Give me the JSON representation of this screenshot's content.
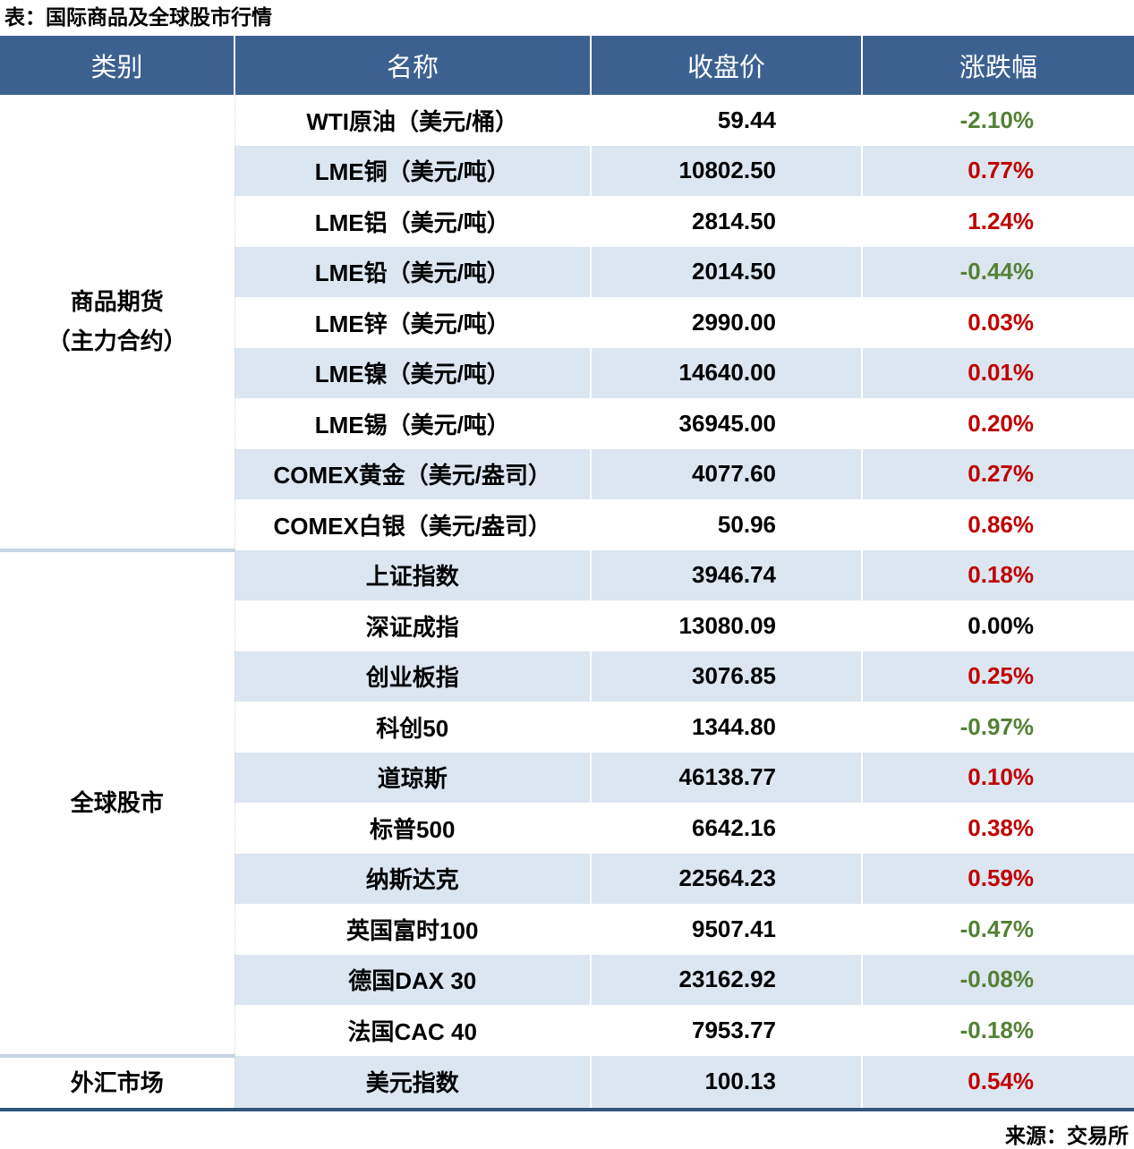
{
  "title": "表：国际商品及全球股市行情",
  "source": "来源：交易所",
  "columns": [
    "类别",
    "名称",
    "收盘价",
    "涨跌幅"
  ],
  "colors": {
    "header_bg": "#3c6191",
    "header_text": "#ffffff",
    "stripe_bg": "#dce6f1",
    "row_bg": "#ffffff",
    "up_text": "#c00000",
    "down_text": "#538135",
    "flat_text": "#000000",
    "bottom_rule": "#31567c",
    "section_divider": "#c6d4e4"
  },
  "sections": [
    {
      "category": "商品期货",
      "category_line2": "（主力合约）",
      "rows": [
        {
          "name": "WTI原油（美元/桶）",
          "close": "59.44",
          "change": "-2.10%",
          "dir": "down"
        },
        {
          "name": "LME铜（美元/吨）",
          "close": "10802.50",
          "change": "0.77%",
          "dir": "up"
        },
        {
          "name": "LME铝（美元/吨）",
          "close": "2814.50",
          "change": "1.24%",
          "dir": "up"
        },
        {
          "name": "LME铅（美元/吨）",
          "close": "2014.50",
          "change": "-0.44%",
          "dir": "down"
        },
        {
          "name": "LME锌（美元/吨）",
          "close": "2990.00",
          "change": "0.03%",
          "dir": "up"
        },
        {
          "name": "LME镍（美元/吨）",
          "close": "14640.00",
          "change": "0.01%",
          "dir": "up"
        },
        {
          "name": "LME锡（美元/吨）",
          "close": "36945.00",
          "change": "0.20%",
          "dir": "up"
        },
        {
          "name": "COMEX黄金（美元/盎司）",
          "close": "4077.60",
          "change": "0.27%",
          "dir": "up"
        },
        {
          "name": "COMEX白银（美元/盎司）",
          "close": "50.96",
          "change": "0.86%",
          "dir": "up"
        }
      ]
    },
    {
      "category": "全球股市",
      "category_line2": "",
      "rows": [
        {
          "name": "上证指数",
          "close": "3946.74",
          "change": "0.18%",
          "dir": "up"
        },
        {
          "name": "深证成指",
          "close": "13080.09",
          "change": "0.00%",
          "dir": "flat"
        },
        {
          "name": "创业板指",
          "close": "3076.85",
          "change": "0.25%",
          "dir": "up"
        },
        {
          "name": "科创50",
          "close": "1344.80",
          "change": "-0.97%",
          "dir": "down"
        },
        {
          "name": "道琼斯",
          "close": "46138.77",
          "change": "0.10%",
          "dir": "up"
        },
        {
          "name": "标普500",
          "close": "6642.16",
          "change": "0.38%",
          "dir": "up"
        },
        {
          "name": "纳斯达克",
          "close": "22564.23",
          "change": "0.59%",
          "dir": "up"
        },
        {
          "name": "英国富时100",
          "close": "9507.41",
          "change": "-0.47%",
          "dir": "down"
        },
        {
          "name": "德国DAX 30",
          "close": "23162.92",
          "change": "-0.08%",
          "dir": "down"
        },
        {
          "name": "法国CAC 40",
          "close": "7953.77",
          "change": "-0.18%",
          "dir": "down"
        }
      ]
    },
    {
      "category": "外汇市场",
      "category_line2": "",
      "rows": [
        {
          "name": "美元指数",
          "close": "100.13",
          "change": "0.54%",
          "dir": "up"
        }
      ]
    }
  ],
  "chart_data": {
    "type": "table",
    "title": "表：国际商品及全球股市行情",
    "columns": [
      "类别",
      "名称",
      "收盘价",
      "涨跌幅"
    ],
    "rows": [
      [
        "商品期货（主力合约）",
        "WTI原油（美元/桶）",
        59.44,
        "-2.10%"
      ],
      [
        "商品期货（主力合约）",
        "LME铜（美元/吨）",
        10802.5,
        "0.77%"
      ],
      [
        "商品期货（主力合约）",
        "LME铝（美元/吨）",
        2814.5,
        "1.24%"
      ],
      [
        "商品期货（主力合约）",
        "LME铅（美元/吨）",
        2014.5,
        "-0.44%"
      ],
      [
        "商品期货（主力合约）",
        "LME锌（美元/吨）",
        2990.0,
        "0.03%"
      ],
      [
        "商品期货（主力合约）",
        "LME镍（美元/吨）",
        14640.0,
        "0.01%"
      ],
      [
        "商品期货（主力合约）",
        "LME锡（美元/吨）",
        36945.0,
        "0.20%"
      ],
      [
        "商品期货（主力合约）",
        "COMEX黄金（美元/盎司）",
        4077.6,
        "0.27%"
      ],
      [
        "商品期货（主力合约）",
        "COMEX白银（美元/盎司）",
        50.96,
        "0.86%"
      ],
      [
        "全球股市",
        "上证指数",
        3946.74,
        "0.18%"
      ],
      [
        "全球股市",
        "深证成指",
        13080.09,
        "0.00%"
      ],
      [
        "全球股市",
        "创业板指",
        3076.85,
        "0.25%"
      ],
      [
        "全球股市",
        "科创50",
        1344.8,
        "-0.97%"
      ],
      [
        "全球股市",
        "道琼斯",
        46138.77,
        "0.10%"
      ],
      [
        "全球股市",
        "标普500",
        6642.16,
        "0.38%"
      ],
      [
        "全球股市",
        "纳斯达克",
        22564.23,
        "0.59%"
      ],
      [
        "全球股市",
        "英国富时100",
        9507.41,
        "-0.47%"
      ],
      [
        "全球股市",
        "德国DAX 30",
        23162.92,
        "-0.08%"
      ],
      [
        "全球股市",
        "法国CAC 40",
        7953.77,
        "-0.18%"
      ],
      [
        "外汇市场",
        "美元指数",
        100.13,
        "0.54%"
      ]
    ],
    "source": "来源：交易所",
    "legend_note_colors": {
      "positive_change": "#c00000",
      "negative_change": "#538135",
      "zero_change": "#000000"
    }
  }
}
